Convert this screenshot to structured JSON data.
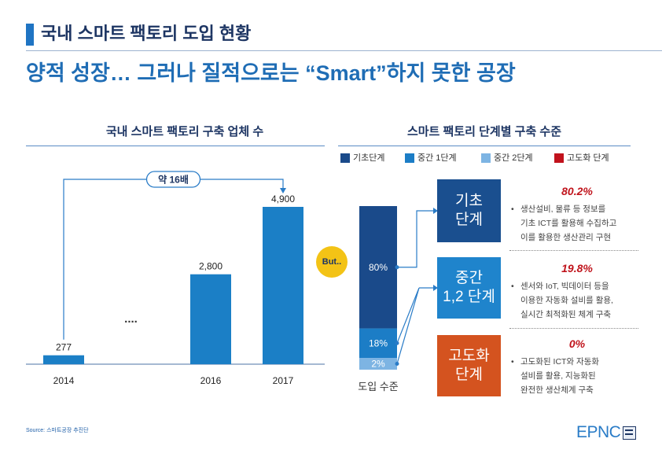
{
  "header": {
    "title": "국내 스마트 팩토리 도입 현황",
    "subtitle": "양적 성장… 그러나 질적으로는 “Smart”하지 못한 공장"
  },
  "colors": {
    "title": "#1d3563",
    "accent": "#1f74c3",
    "subtitle": "#1f6db5",
    "connector": "#2a7cc7",
    "callout": "#f3c316",
    "percent": "#c0141c"
  },
  "callout": {
    "but_label": "But.."
  },
  "stages": [
    {
      "box_lines": [
        "기초",
        "단계"
      ],
      "color": "#1a4f8f",
      "percent": "80.2%",
      "lines": [
        "생산설비, 물류 등 정보를",
        "기초 ICT를 활용해 수집하고",
        "이를 활용한 생산관리 구현"
      ]
    },
    {
      "box_lines": [
        "중간",
        "1,2 단계"
      ],
      "color": "#1f84cc",
      "percent": "19.8%",
      "lines": [
        "센서와 IoT, 빅데이터 등을",
        "이용한 자동화 설비를 활용,",
        "실시간 최적화된 체계 구축"
      ]
    },
    {
      "box_lines": [
        "고도화",
        "단계"
      ],
      "color": "#d4531f",
      "percent": "0%",
      "lines": [
        "고도화된 ICT와 자동화",
        "설비를 활용, 지능화된",
        "완전한 생산체계 구축"
      ]
    }
  ],
  "footer": {
    "source": "Source: 스마트공장 추진단",
    "logo_text": "EPNC"
  },
  "chart_data": [
    {
      "type": "bar",
      "title": "국내 스마트 팩토리 구축 업체 수",
      "categories": [
        "2014",
        "2016",
        "2017"
      ],
      "values": [
        277,
        2800,
        4900
      ],
      "value_labels": [
        "277",
        "2,800",
        "4,900"
      ],
      "annotations": [
        "....",
        "약 16배"
      ],
      "color": "#1b7fc6",
      "grid": false
    },
    {
      "type": "bar",
      "stacked": true,
      "title": "스마트 팩토리 단계별 구축 수준",
      "categories": [
        "도입 수준"
      ],
      "series": [
        {
          "name": "기초단계",
          "values": [
            80
          ],
          "label": "80%",
          "color": "#1a4a8a"
        },
        {
          "name": "중간 1단계",
          "values": [
            18
          ],
          "label": "18%",
          "color": "#1c7dc6"
        },
        {
          "name": "중간 2단계",
          "values": [
            2
          ],
          "label": "2%",
          "color": "#7db4e3"
        },
        {
          "name": "고도화 단계",
          "values": [
            0
          ],
          "color": "#c1121c"
        }
      ],
      "legend": "top",
      "grid": false
    }
  ]
}
